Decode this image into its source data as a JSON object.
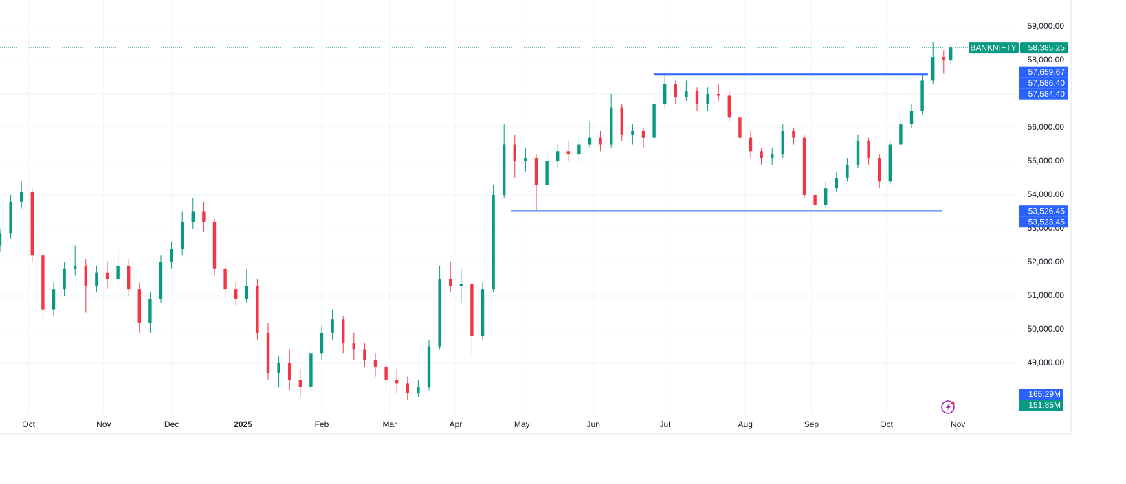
{
  "chart_data": {
    "type": "candlestick",
    "symbol": "BANKNIFTY",
    "up_color": "#089981",
    "down_color": "#f23645",
    "grid": true,
    "xlim": [
      0,
      300
    ],
    "ylim": [
      47449,
      59796
    ],
    "xticks": [
      {
        "value": 8,
        "label": "Oct"
      },
      {
        "value": 29,
        "label": "Nov"
      },
      {
        "value": 48,
        "label": "Dec"
      },
      {
        "value": 68,
        "label": "2025",
        "bold": true
      },
      {
        "value": 90,
        "label": "Feb"
      },
      {
        "value": 109,
        "label": "Mar"
      },
      {
        "value": 127.5,
        "label": "Apr"
      },
      {
        "value": 146,
        "label": "May"
      },
      {
        "value": 166,
        "label": "Jun"
      },
      {
        "value": 186,
        "label": "Jul"
      },
      {
        "value": 208.5,
        "label": "Aug"
      },
      {
        "value": 227,
        "label": "Sep"
      },
      {
        "value": 248,
        "label": "Oct"
      },
      {
        "value": 268,
        "label": "Nov"
      }
    ],
    "yticks": [
      {
        "value": 49000,
        "label": "49,000.00"
      },
      {
        "value": 50000,
        "label": "50,000.00"
      },
      {
        "value": 51000,
        "label": "51,000.00"
      },
      {
        "value": 52000,
        "label": "52,000.00"
      },
      {
        "value": 53000,
        "label": "53,000.00"
      },
      {
        "value": 54000,
        "label": "54,000.00"
      },
      {
        "value": 55000,
        "label": "55,000.00"
      },
      {
        "value": 56000,
        "label": "56,000.00"
      },
      {
        "value": 57000,
        "label": "57,000.00"
      },
      {
        "value": 58000,
        "label": "58,000.00"
      },
      {
        "value": 59000,
        "label": "59,000.00"
      }
    ],
    "candles": [
      {
        "x": 0,
        "o": 52500,
        "h": 53000,
        "l": 52300,
        "c": 52850
      },
      {
        "x": 3,
        "o": 52850,
        "h": 54000,
        "l": 52700,
        "c": 53800
      },
      {
        "x": 6,
        "o": 53800,
        "h": 54400,
        "l": 53600,
        "c": 54100
      },
      {
        "x": 9,
        "o": 54100,
        "h": 54200,
        "l": 52000,
        "c": 52200
      },
      {
        "x": 12,
        "o": 52200,
        "h": 52400,
        "l": 50300,
        "c": 50600
      },
      {
        "x": 15,
        "o": 50600,
        "h": 51400,
        "l": 50400,
        "c": 51200
      },
      {
        "x": 18,
        "o": 51200,
        "h": 52000,
        "l": 51000,
        "c": 51800
      },
      {
        "x": 21,
        "o": 51800,
        "h": 52500,
        "l": 51600,
        "c": 51900
      },
      {
        "x": 24,
        "o": 51900,
        "h": 52100,
        "l": 50500,
        "c": 51300
      },
      {
        "x": 27,
        "o": 51300,
        "h": 51900,
        "l": 51100,
        "c": 51700
      },
      {
        "x": 30,
        "o": 51700,
        "h": 52000,
        "l": 51200,
        "c": 51500
      },
      {
        "x": 33,
        "o": 51500,
        "h": 52400,
        "l": 51300,
        "c": 51900
      },
      {
        "x": 36,
        "o": 51900,
        "h": 52100,
        "l": 51000,
        "c": 51200
      },
      {
        "x": 39,
        "o": 51200,
        "h": 51400,
        "l": 49900,
        "c": 50200
      },
      {
        "x": 42,
        "o": 50200,
        "h": 51100,
        "l": 49900,
        "c": 50900
      },
      {
        "x": 45,
        "o": 50900,
        "h": 52200,
        "l": 50800,
        "c": 52000
      },
      {
        "x": 48,
        "o": 52000,
        "h": 52600,
        "l": 51800,
        "c": 52400
      },
      {
        "x": 51,
        "o": 52400,
        "h": 53500,
        "l": 52200,
        "c": 53200
      },
      {
        "x": 54,
        "o": 53200,
        "h": 53900,
        "l": 53000,
        "c": 53500
      },
      {
        "x": 57,
        "o": 53500,
        "h": 53800,
        "l": 52900,
        "c": 53200
      },
      {
        "x": 60,
        "o": 53200,
        "h": 53300,
        "l": 51600,
        "c": 51800
      },
      {
        "x": 63,
        "o": 51800,
        "h": 52000,
        "l": 50800,
        "c": 51200
      },
      {
        "x": 66,
        "o": 51200,
        "h": 51400,
        "l": 50700,
        "c": 50900
      },
      {
        "x": 69,
        "o": 50900,
        "h": 51800,
        "l": 50800,
        "c": 51300
      },
      {
        "x": 72,
        "o": 51300,
        "h": 51500,
        "l": 49700,
        "c": 49900
      },
      {
        "x": 75,
        "o": 49900,
        "h": 50200,
        "l": 48500,
        "c": 48700
      },
      {
        "x": 78,
        "o": 48700,
        "h": 49200,
        "l": 48300,
        "c": 49000
      },
      {
        "x": 81,
        "o": 49000,
        "h": 49400,
        "l": 48200,
        "c": 48500
      },
      {
        "x": 84,
        "o": 48500,
        "h": 48800,
        "l": 48000,
        "c": 48300
      },
      {
        "x": 87,
        "o": 48300,
        "h": 49500,
        "l": 48200,
        "c": 49300
      },
      {
        "x": 90,
        "o": 49300,
        "h": 50100,
        "l": 49100,
        "c": 49900
      },
      {
        "x": 93,
        "o": 49900,
        "h": 50600,
        "l": 49700,
        "c": 50300
      },
      {
        "x": 96,
        "o": 50300,
        "h": 50400,
        "l": 49300,
        "c": 49600
      },
      {
        "x": 99,
        "o": 49600,
        "h": 49900,
        "l": 49100,
        "c": 49400
      },
      {
        "x": 102,
        "o": 49400,
        "h": 49600,
        "l": 48900,
        "c": 49100
      },
      {
        "x": 105,
        "o": 49100,
        "h": 49300,
        "l": 48600,
        "c": 48900
      },
      {
        "x": 108,
        "o": 48900,
        "h": 49000,
        "l": 48200,
        "c": 48500
      },
      {
        "x": 111,
        "o": 48500,
        "h": 48800,
        "l": 48100,
        "c": 48400
      },
      {
        "x": 114,
        "o": 48400,
        "h": 48600,
        "l": 47900,
        "c": 48100
      },
      {
        "x": 117,
        "o": 48100,
        "h": 48500,
        "l": 48000,
        "c": 48300
      },
      {
        "x": 120,
        "o": 48300,
        "h": 49700,
        "l": 48200,
        "c": 49500
      },
      {
        "x": 123,
        "o": 49500,
        "h": 51900,
        "l": 49400,
        "c": 51500
      },
      {
        "x": 126,
        "o": 51500,
        "h": 52000,
        "l": 51100,
        "c": 51300
      },
      {
        "x": 129,
        "o": 51300,
        "h": 51800,
        "l": 50800,
        "c": 51350
      },
      {
        "x": 132,
        "o": 51350,
        "h": 51400,
        "l": 49200,
        "c": 49800
      },
      {
        "x": 135,
        "o": 49800,
        "h": 51400,
        "l": 49700,
        "c": 51200
      },
      {
        "x": 138,
        "o": 51200,
        "h": 54300,
        "l": 51100,
        "c": 54000
      },
      {
        "x": 141,
        "o": 54000,
        "h": 56100,
        "l": 53900,
        "c": 55500
      },
      {
        "x": 144,
        "o": 55500,
        "h": 55800,
        "l": 54500,
        "c": 55000
      },
      {
        "x": 147,
        "o": 55000,
        "h": 55400,
        "l": 54700,
        "c": 55100
      },
      {
        "x": 150,
        "o": 55100,
        "h": 55200,
        "l": 53550,
        "c": 54300
      },
      {
        "x": 153,
        "o": 54300,
        "h": 55300,
        "l": 54200,
        "c": 55000
      },
      {
        "x": 156,
        "o": 55000,
        "h": 55500,
        "l": 54800,
        "c": 55300
      },
      {
        "x": 159,
        "o": 55300,
        "h": 55600,
        "l": 55000,
        "c": 55200
      },
      {
        "x": 162,
        "o": 55200,
        "h": 55800,
        "l": 55000,
        "c": 55500
      },
      {
        "x": 165,
        "o": 55500,
        "h": 56200,
        "l": 55400,
        "c": 55700
      },
      {
        "x": 168,
        "o": 55700,
        "h": 55900,
        "l": 55300,
        "c": 55500
      },
      {
        "x": 171,
        "o": 55500,
        "h": 57000,
        "l": 55400,
        "c": 56600
      },
      {
        "x": 174,
        "o": 56600,
        "h": 56700,
        "l": 55600,
        "c": 55800
      },
      {
        "x": 177,
        "o": 55800,
        "h": 56100,
        "l": 55500,
        "c": 55900
      },
      {
        "x": 180,
        "o": 55900,
        "h": 56000,
        "l": 55400,
        "c": 55700
      },
      {
        "x": 183,
        "o": 55700,
        "h": 56900,
        "l": 55600,
        "c": 56700
      },
      {
        "x": 186,
        "o": 56700,
        "h": 57600,
        "l": 56600,
        "c": 57300
      },
      {
        "x": 189,
        "o": 57300,
        "h": 57400,
        "l": 56700,
        "c": 56900
      },
      {
        "x": 192,
        "o": 56900,
        "h": 57400,
        "l": 56800,
        "c": 57100
      },
      {
        "x": 195,
        "o": 57100,
        "h": 57200,
        "l": 56500,
        "c": 56700
      },
      {
        "x": 198,
        "o": 56700,
        "h": 57200,
        "l": 56500,
        "c": 57000
      },
      {
        "x": 201,
        "o": 57000,
        "h": 57300,
        "l": 56800,
        "c": 56950
      },
      {
        "x": 204,
        "o": 56950,
        "h": 57100,
        "l": 56200,
        "c": 56300
      },
      {
        "x": 207,
        "o": 56300,
        "h": 56400,
        "l": 55500,
        "c": 55700
      },
      {
        "x": 210,
        "o": 55700,
        "h": 55900,
        "l": 55100,
        "c": 55300
      },
      {
        "x": 213,
        "o": 55300,
        "h": 55400,
        "l": 54900,
        "c": 55100
      },
      {
        "x": 216,
        "o": 55100,
        "h": 55400,
        "l": 54900,
        "c": 55200
      },
      {
        "x": 219,
        "o": 55200,
        "h": 56100,
        "l": 55100,
        "c": 55900
      },
      {
        "x": 222,
        "o": 55900,
        "h": 56000,
        "l": 55500,
        "c": 55700
      },
      {
        "x": 225,
        "o": 55700,
        "h": 55800,
        "l": 53900,
        "c": 54000
      },
      {
        "x": 228,
        "o": 54000,
        "h": 54100,
        "l": 53550,
        "c": 53700
      },
      {
        "x": 231,
        "o": 53700,
        "h": 54400,
        "l": 53600,
        "c": 54200
      },
      {
        "x": 234,
        "o": 54200,
        "h": 54700,
        "l": 54100,
        "c": 54500
      },
      {
        "x": 237,
        "o": 54500,
        "h": 55100,
        "l": 54400,
        "c": 54900
      },
      {
        "x": 240,
        "o": 54900,
        "h": 55800,
        "l": 54800,
        "c": 55600
      },
      {
        "x": 243,
        "o": 55600,
        "h": 55700,
        "l": 54900,
        "c": 55100
      },
      {
        "x": 246,
        "o": 55100,
        "h": 55200,
        "l": 54200,
        "c": 54400
      },
      {
        "x": 249,
        "o": 54400,
        "h": 55600,
        "l": 54300,
        "c": 55500
      },
      {
        "x": 252,
        "o": 55500,
        "h": 56300,
        "l": 55400,
        "c": 56100
      },
      {
        "x": 255,
        "o": 56100,
        "h": 56700,
        "l": 56000,
        "c": 56500
      },
      {
        "x": 258,
        "o": 56500,
        "h": 57600,
        "l": 56400,
        "c": 57400
      },
      {
        "x": 261,
        "o": 57400,
        "h": 58550,
        "l": 57300,
        "c": 58100
      },
      {
        "x": 264,
        "o": 58100,
        "h": 58300,
        "l": 57600,
        "c": 58000
      },
      {
        "x": 266,
        "o": 58000,
        "h": 58450,
        "l": 57900,
        "c": 58385.25
      }
    ],
    "lines": [
      {
        "value": 57586.4,
        "x": [
          183,
          259.6
        ],
        "color": "#2962ff"
      },
      {
        "value": 53523.45,
        "x": [
          143,
          263.5
        ],
        "color": "#2962ff"
      }
    ],
    "last_price": {
      "value": 58385.25,
      "label": "58,385.25",
      "color": "#089981"
    },
    "price_labels": [
      {
        "value": 57659.67,
        "label": "57,659.67"
      },
      {
        "value": 57586.4,
        "label": "57,586.40"
      },
      {
        "value": 57584.4,
        "label": "57,584.40"
      },
      {
        "value": 53526.45,
        "label": "53,526.45"
      },
      {
        "value": 53523.45,
        "label": "53,523.45"
      }
    ],
    "price_label_color": "#2962ff",
    "volume_labels": [
      {
        "label": "165.29M",
        "color": "#2962ff"
      },
      {
        "label": "151.85M",
        "color": "#089981"
      }
    ]
  }
}
